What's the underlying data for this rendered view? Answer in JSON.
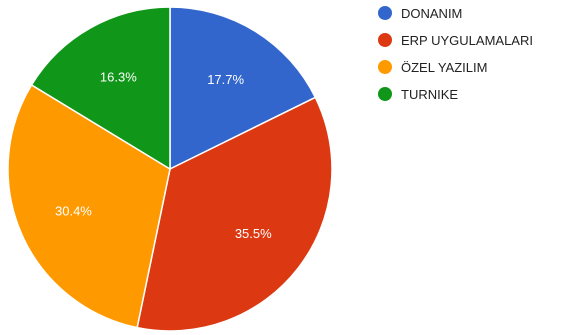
{
  "chart_data": {
    "type": "pie",
    "title": "",
    "slices": [
      {
        "label": "DONANIM",
        "value": 17.7,
        "value_label": "17.7%",
        "color": "#3366cc"
      },
      {
        "label": "ERP UYGULAMALARI",
        "value": 35.5,
        "value_label": "35.5%",
        "color": "#dc3912"
      },
      {
        "label": "ÖZEL YAZILIM",
        "value": 30.4,
        "value_label": "30.4%",
        "color": "#ff9900"
      },
      {
        "label": "TURNIKE",
        "value": 16.3,
        "value_label": "16.3%",
        "color": "#109618"
      }
    ],
    "legend_position": "right",
    "start_angle": "top, clockwise"
  }
}
